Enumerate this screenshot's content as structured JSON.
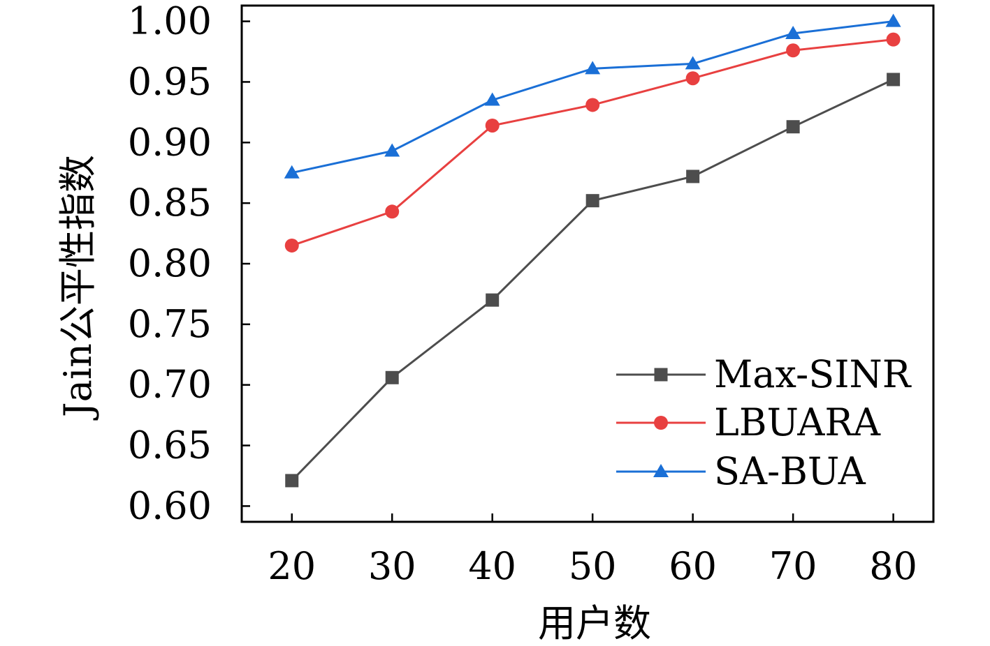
{
  "chart_data": {
    "type": "line",
    "title": "",
    "xlabel": "用户数",
    "ylabel": "Jain公平性指数",
    "x": [
      20,
      30,
      40,
      50,
      60,
      70,
      80
    ],
    "x_ticks": [
      "20",
      "30",
      "40",
      "50",
      "60",
      "70",
      "80"
    ],
    "y_ticks": [
      "0.60",
      "0.65",
      "0.70",
      "0.75",
      "0.80",
      "0.85",
      "0.90",
      "0.95",
      "1.00"
    ],
    "xlim": [
      15,
      84
    ],
    "ylim": [
      0.587,
      1.013
    ],
    "grid": false,
    "legend_position": "bottom-right",
    "series": [
      {
        "name": "Max-SINR",
        "color": "#4d4d4d",
        "marker": "square",
        "values": [
          0.621,
          0.706,
          0.77,
          0.852,
          0.872,
          0.913,
          0.952
        ]
      },
      {
        "name": "LBUARA",
        "color": "#e84040",
        "marker": "circle",
        "values": [
          0.815,
          0.843,
          0.914,
          0.931,
          0.953,
          0.976,
          0.985
        ]
      },
      {
        "name": "SA-BUA",
        "color": "#1a6fd6",
        "marker": "triangle",
        "values": [
          0.875,
          0.893,
          0.935,
          0.961,
          0.965,
          0.99,
          1.0
        ]
      }
    ]
  }
}
